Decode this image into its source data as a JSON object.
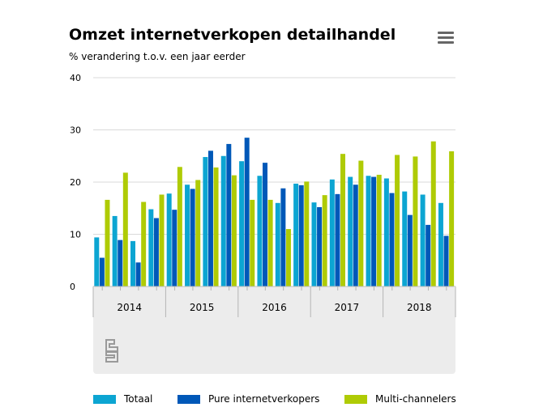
{
  "title": "Omzet internetverkopen detailhandel",
  "subtitle": "% verandering t.o.v. een jaar eerder",
  "menu_icon": "hamburger-menu-icon",
  "logo_icon": "cbs-logo-icon",
  "colors": {
    "Totaal": "#0ca5d2",
    "Pure internetverkopers": "#0058b8",
    "Multi-channelers": "#afcb05",
    "grid": "#d9d9d9",
    "panel": "#ececec"
  },
  "chart_data": {
    "type": "bar",
    "title": "Omzet internetverkopen detailhandel",
    "subtitle": "% verandering t.o.v. een jaar eerder",
    "ylim": [
      0,
      40
    ],
    "yticks": [
      0,
      10,
      20,
      30,
      40
    ],
    "grid": true,
    "legend_position": "bottom",
    "years": [
      "2014",
      "2015",
      "2016",
      "2017",
      "2018"
    ],
    "quarters_per_year": 4,
    "series": [
      {
        "name": "Totaal",
        "values": [
          9.4,
          13.5,
          8.7,
          14.8,
          17.8,
          19.5,
          24.8,
          25.0,
          24.0,
          21.2,
          16.0,
          19.7,
          16.1,
          20.5,
          21.0,
          21.2,
          20.7,
          18.2,
          17.6,
          16.0
        ]
      },
      {
        "name": "Pure internetverkopers",
        "values": [
          5.5,
          8.9,
          4.6,
          13.1,
          14.7,
          18.7,
          26.0,
          27.3,
          28.5,
          23.7,
          18.8,
          19.4,
          15.2,
          17.7,
          19.5,
          21.0,
          17.9,
          13.7,
          11.8,
          9.7
        ]
      },
      {
        "name": "Multi-channelers",
        "values": [
          16.6,
          21.8,
          16.2,
          17.6,
          22.9,
          20.4,
          22.8,
          21.3,
          16.6,
          16.6,
          11.0,
          20.1,
          17.5,
          25.4,
          24.1,
          21.4,
          25.2,
          24.9,
          27.8,
          25.9
        ]
      }
    ]
  }
}
